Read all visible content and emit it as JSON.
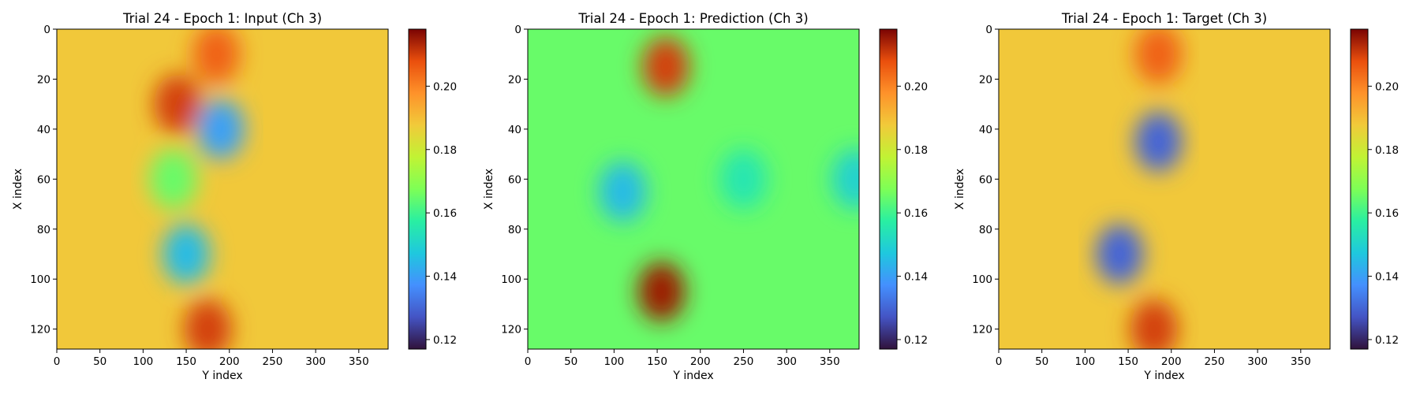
{
  "chart_data": [
    {
      "type": "heatmap",
      "title": "Trial 24 - Epoch 1: Input (Ch 3)",
      "xlabel": "Y index",
      "ylabel": "X index",
      "xlim": [
        0,
        384
      ],
      "ylim": [
        128,
        0
      ],
      "x_ticks": [
        "0",
        "50",
        "100",
        "150",
        "200",
        "250",
        "300",
        "350"
      ],
      "y_ticks": [
        "0",
        "20",
        "40",
        "60",
        "80",
        "100",
        "120"
      ],
      "colorbar": {
        "min": 0.117,
        "max": 0.218,
        "ticks": [
          "0.12",
          "0.14",
          "0.16",
          "0.18",
          "0.20"
        ],
        "colormap": "turbo"
      },
      "background_value": 0.188,
      "features": [
        {
          "y": 185,
          "x": 10,
          "v": 0.205
        },
        {
          "y": 140,
          "x": 30,
          "v": 0.21
        },
        {
          "y": 190,
          "x": 40,
          "v": 0.14
        },
        {
          "y": 135,
          "x": 60,
          "v": 0.165
        },
        {
          "y": 150,
          "x": 90,
          "v": 0.145
        },
        {
          "y": 175,
          "x": 120,
          "v": 0.21
        }
      ]
    },
    {
      "type": "heatmap",
      "title": "Trial 24 - Epoch 1: Prediction (Ch 3)",
      "xlabel": "Y index",
      "ylabel": "X index",
      "xlim": [
        0,
        384
      ],
      "ylim": [
        128,
        0
      ],
      "x_ticks": [
        "0",
        "50",
        "100",
        "150",
        "200",
        "250",
        "300",
        "350"
      ],
      "y_ticks": [
        "0",
        "20",
        "40",
        "60",
        "80",
        "100",
        "120"
      ],
      "colorbar": {
        "min": 0.117,
        "max": 0.218,
        "ticks": [
          "0.12",
          "0.14",
          "0.16",
          "0.18",
          "0.20"
        ],
        "colormap": "turbo"
      },
      "background_value": 0.165,
      "features": [
        {
          "y": 160,
          "x": 15,
          "v": 0.21
        },
        {
          "y": 110,
          "x": 65,
          "v": 0.145
        },
        {
          "y": 155,
          "x": 105,
          "v": 0.215
        },
        {
          "y": 250,
          "x": 60,
          "v": 0.155
        },
        {
          "y": 380,
          "x": 60,
          "v": 0.15
        }
      ]
    },
    {
      "type": "heatmap",
      "title": "Trial 24 - Epoch 1: Target (Ch 3)",
      "xlabel": "Y index",
      "ylabel": "X index",
      "xlim": [
        0,
        384
      ],
      "ylim": [
        128,
        0
      ],
      "x_ticks": [
        "0",
        "50",
        "100",
        "150",
        "200",
        "250",
        "300",
        "350"
      ],
      "y_ticks": [
        "0",
        "20",
        "40",
        "60",
        "80",
        "100",
        "120"
      ],
      "colorbar": {
        "min": 0.117,
        "max": 0.218,
        "ticks": [
          "0.12",
          "0.14",
          "0.16",
          "0.18",
          "0.20"
        ],
        "colormap": "turbo"
      },
      "background_value": 0.188,
      "features": [
        {
          "y": 185,
          "x": 10,
          "v": 0.205
        },
        {
          "y": 185,
          "x": 45,
          "v": 0.13
        },
        {
          "y": 140,
          "x": 90,
          "v": 0.13
        },
        {
          "y": 180,
          "x": 120,
          "v": 0.21
        }
      ]
    }
  ]
}
